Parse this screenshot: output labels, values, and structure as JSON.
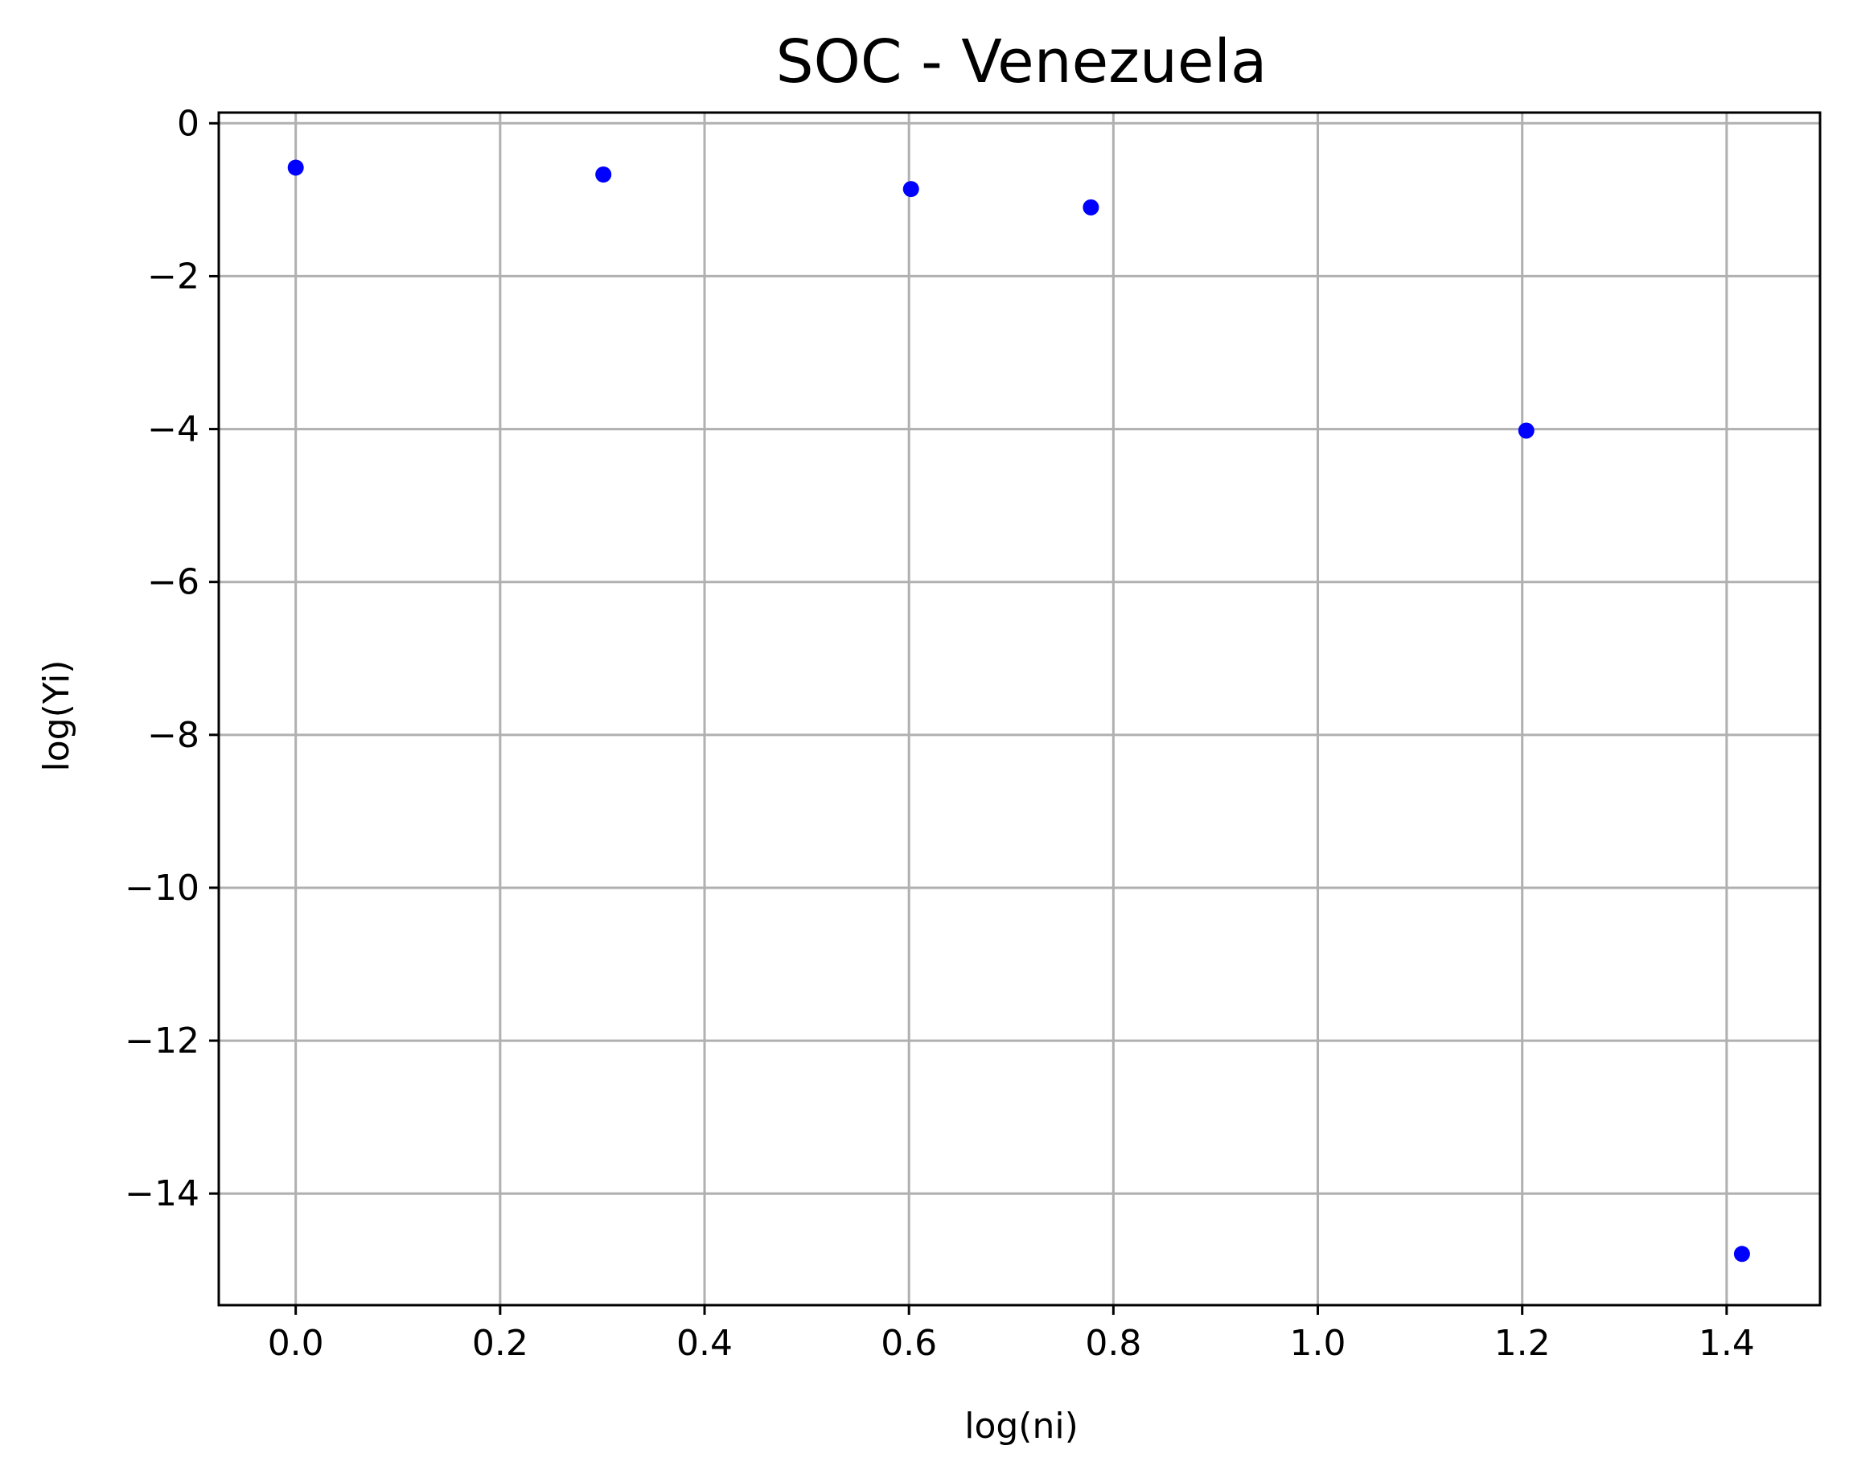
{
  "chart_data": {
    "type": "scatter",
    "title": "SOC - Venezuela",
    "xlabel": "log(ni)",
    "ylabel": "log(Yi)",
    "xlim": [
      -0.0753,
      1.4914
    ],
    "ylim": [
      -15.46,
      0.14
    ],
    "x_ticks": [
      0.0,
      0.2,
      0.4,
      0.6,
      0.8,
      1.0,
      1.2,
      1.4
    ],
    "x_tick_labels": [
      "0.0",
      "0.2",
      "0.4",
      "0.6",
      "0.8",
      "1.0",
      "1.2",
      "1.4"
    ],
    "y_ticks": [
      0,
      -2,
      -4,
      -6,
      -8,
      -10,
      -12,
      -14
    ],
    "y_tick_labels": [
      "0",
      "−2",
      "−4",
      "−6",
      "−8",
      "−10",
      "−12",
      "−14"
    ],
    "grid": true,
    "marker_color": "#0000ff",
    "series": [
      {
        "x": [
          0.0,
          0.301,
          0.602,
          0.778,
          1.204,
          1.415
        ],
        "y": [
          -0.58,
          -0.67,
          -0.86,
          -1.1,
          -4.02,
          -14.79
        ]
      }
    ]
  }
}
